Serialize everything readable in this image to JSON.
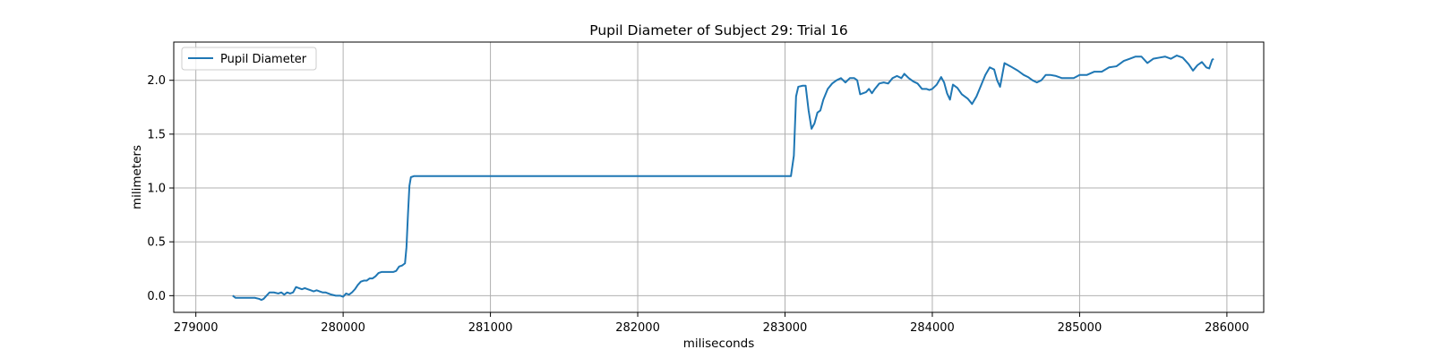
{
  "chart_data": {
    "type": "line",
    "title": "Pupil Diameter of Subject 29: Trial 16",
    "xlabel": "miliseconds",
    "ylabel": "milimeters",
    "xlim": [
      278850,
      286250
    ],
    "ylim": [
      -0.155,
      2.355
    ],
    "xticks": [
      279000,
      280000,
      281000,
      282000,
      283000,
      284000,
      285000,
      286000
    ],
    "yticks": [
      0.0,
      0.5,
      1.0,
      1.5,
      2.0
    ],
    "grid": true,
    "legend_position": "upper-left",
    "series": [
      {
        "name": "Pupil Diameter",
        "color": "#1f77b4",
        "points": [
          [
            279250,
            0.0
          ],
          [
            279270,
            -0.02
          ],
          [
            279300,
            -0.02
          ],
          [
            279350,
            -0.02
          ],
          [
            279400,
            -0.02
          ],
          [
            279430,
            -0.03
          ],
          [
            279445,
            -0.04
          ],
          [
            279460,
            -0.03
          ],
          [
            279480,
            0.0
          ],
          [
            279500,
            0.03
          ],
          [
            279530,
            0.03
          ],
          [
            279560,
            0.02
          ],
          [
            279580,
            0.03
          ],
          [
            279600,
            0.01
          ],
          [
            279620,
            0.03
          ],
          [
            279640,
            0.02
          ],
          [
            279660,
            0.03
          ],
          [
            279680,
            0.08
          ],
          [
            279700,
            0.07
          ],
          [
            279720,
            0.06
          ],
          [
            279740,
            0.07
          ],
          [
            279760,
            0.06
          ],
          [
            279780,
            0.05
          ],
          [
            279800,
            0.04
          ],
          [
            279820,
            0.05
          ],
          [
            279840,
            0.04
          ],
          [
            279860,
            0.03
          ],
          [
            279880,
            0.03
          ],
          [
            279900,
            0.02
          ],
          [
            279920,
            0.01
          ],
          [
            279950,
            0.0
          ],
          [
            279980,
            0.0
          ],
          [
            280000,
            -0.01
          ],
          [
            280020,
            0.02
          ],
          [
            280040,
            0.01
          ],
          [
            280060,
            0.03
          ],
          [
            280080,
            0.06
          ],
          [
            280100,
            0.1
          ],
          [
            280120,
            0.13
          ],
          [
            280140,
            0.14
          ],
          [
            280160,
            0.14
          ],
          [
            280180,
            0.16
          ],
          [
            280200,
            0.16
          ],
          [
            280220,
            0.18
          ],
          [
            280240,
            0.21
          ],
          [
            280260,
            0.22
          ],
          [
            280300,
            0.22
          ],
          [
            280340,
            0.22
          ],
          [
            280360,
            0.23
          ],
          [
            280380,
            0.27
          ],
          [
            280400,
            0.28
          ],
          [
            280420,
            0.3
          ],
          [
            280430,
            0.45
          ],
          [
            280440,
            0.75
          ],
          [
            280450,
            1.02
          ],
          [
            280460,
            1.1
          ],
          [
            280480,
            1.11
          ],
          [
            280700,
            1.11
          ],
          [
            281000,
            1.11
          ],
          [
            281500,
            1.11
          ],
          [
            282000,
            1.11
          ],
          [
            282500,
            1.11
          ],
          [
            283000,
            1.11
          ],
          [
            283040,
            1.11
          ],
          [
            283060,
            1.3
          ],
          [
            283075,
            1.85
          ],
          [
            283090,
            1.94
          ],
          [
            283120,
            1.95
          ],
          [
            283140,
            1.95
          ],
          [
            283160,
            1.72
          ],
          [
            283180,
            1.55
          ],
          [
            283200,
            1.6
          ],
          [
            283220,
            1.7
          ],
          [
            283240,
            1.72
          ],
          [
            283260,
            1.82
          ],
          [
            283290,
            1.92
          ],
          [
            283320,
            1.97
          ],
          [
            283350,
            2.0
          ],
          [
            283380,
            2.02
          ],
          [
            283410,
            1.98
          ],
          [
            283440,
            2.02
          ],
          [
            283470,
            2.02
          ],
          [
            283490,
            2.0
          ],
          [
            283510,
            1.87
          ],
          [
            283530,
            1.88
          ],
          [
            283550,
            1.89
          ],
          [
            283570,
            1.92
          ],
          [
            283590,
            1.88
          ],
          [
            283610,
            1.92
          ],
          [
            283640,
            1.97
          ],
          [
            283670,
            1.98
          ],
          [
            283700,
            1.97
          ],
          [
            283730,
            2.02
          ],
          [
            283760,
            2.04
          ],
          [
            283790,
            2.02
          ],
          [
            283810,
            2.06
          ],
          [
            283840,
            2.02
          ],
          [
            283870,
            1.99
          ],
          [
            283900,
            1.97
          ],
          [
            283930,
            1.92
          ],
          [
            283960,
            1.92
          ],
          [
            283980,
            1.91
          ],
          [
            284000,
            1.92
          ],
          [
            284030,
            1.96
          ],
          [
            284060,
            2.03
          ],
          [
            284080,
            1.98
          ],
          [
            284100,
            1.88
          ],
          [
            284120,
            1.82
          ],
          [
            284140,
            1.96
          ],
          [
            284170,
            1.93
          ],
          [
            284200,
            1.87
          ],
          [
            284240,
            1.83
          ],
          [
            284270,
            1.78
          ],
          [
            284300,
            1.85
          ],
          [
            284330,
            1.95
          ],
          [
            284360,
            2.05
          ],
          [
            284390,
            2.12
          ],
          [
            284420,
            2.1
          ],
          [
            284440,
            2.0
          ],
          [
            284460,
            1.94
          ],
          [
            284490,
            2.16
          ],
          [
            284530,
            2.13
          ],
          [
            284580,
            2.09
          ],
          [
            284620,
            2.05
          ],
          [
            284650,
            2.03
          ],
          [
            284680,
            2.0
          ],
          [
            284710,
            1.98
          ],
          [
            284740,
            2.0
          ],
          [
            284770,
            2.05
          ],
          [
            284800,
            2.05
          ],
          [
            284840,
            2.04
          ],
          [
            284880,
            2.02
          ],
          [
            284920,
            2.02
          ],
          [
            284960,
            2.02
          ],
          [
            285000,
            2.05
          ],
          [
            285050,
            2.05
          ],
          [
            285100,
            2.08
          ],
          [
            285150,
            2.08
          ],
          [
            285200,
            2.12
          ],
          [
            285250,
            2.13
          ],
          [
            285300,
            2.18
          ],
          [
            285340,
            2.2
          ],
          [
            285380,
            2.22
          ],
          [
            285420,
            2.22
          ],
          [
            285460,
            2.16
          ],
          [
            285500,
            2.2
          ],
          [
            285540,
            2.21
          ],
          [
            285580,
            2.22
          ],
          [
            285620,
            2.2
          ],
          [
            285660,
            2.23
          ],
          [
            285700,
            2.21
          ],
          [
            285740,
            2.15
          ],
          [
            285770,
            2.09
          ],
          [
            285800,
            2.14
          ],
          [
            285830,
            2.17
          ],
          [
            285860,
            2.12
          ],
          [
            285880,
            2.11
          ],
          [
            285900,
            2.19
          ],
          [
            285910,
            2.2
          ]
        ]
      }
    ]
  }
}
